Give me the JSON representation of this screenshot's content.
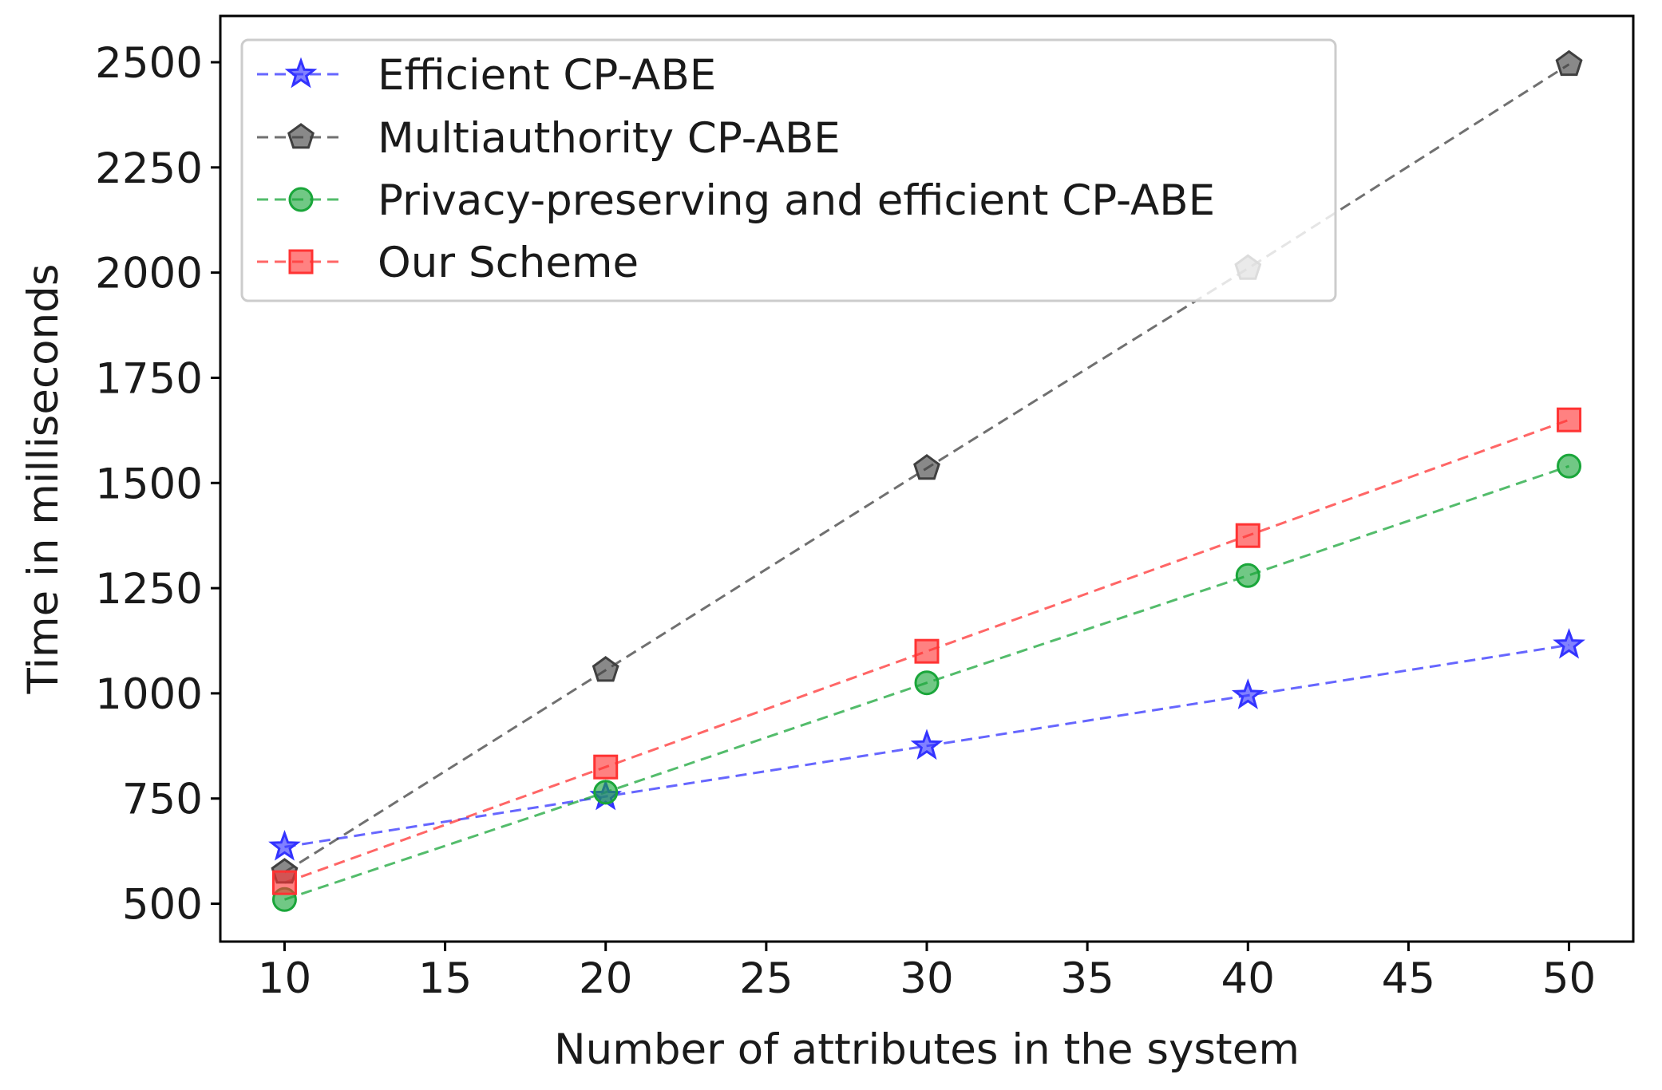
{
  "chart_data": {
    "type": "line",
    "xlabel": "Number of attributes in the system",
    "ylabel": "Time in milliseconds",
    "xlim": [
      8,
      52
    ],
    "ylim": [
      410,
      2610
    ],
    "x_ticks": [
      "10",
      "15",
      "20",
      "25",
      "30",
      "35",
      "40",
      "45",
      "50"
    ],
    "y_ticks": [
      "500",
      "750",
      "1000",
      "1250",
      "1500",
      "1750",
      "2000",
      "2250",
      "2500"
    ],
    "x": [
      10,
      20,
      30,
      40,
      50
    ],
    "grid": false,
    "legend_position": "top-left",
    "series": [
      {
        "name": "Efficient CP-ABE",
        "color": "#3333ff",
        "marker": "star",
        "values": [
          635,
          755,
          875,
          995,
          1115
        ]
      },
      {
        "name": "Multiauthority CP-ABE",
        "color": "#404040",
        "marker": "pentagon",
        "values": [
          575,
          1055,
          1535,
          2010,
          2495
        ]
      },
      {
        "name": "Privacy-preserving and efficient CP-ABE",
        "color": "#1aa63a",
        "marker": "circle",
        "values": [
          510,
          765,
          1025,
          1280,
          1540
        ]
      },
      {
        "name": "Our Scheme",
        "color": "#ff3333",
        "marker": "square",
        "values": [
          550,
          825,
          1100,
          1375,
          1650
        ]
      }
    ]
  }
}
